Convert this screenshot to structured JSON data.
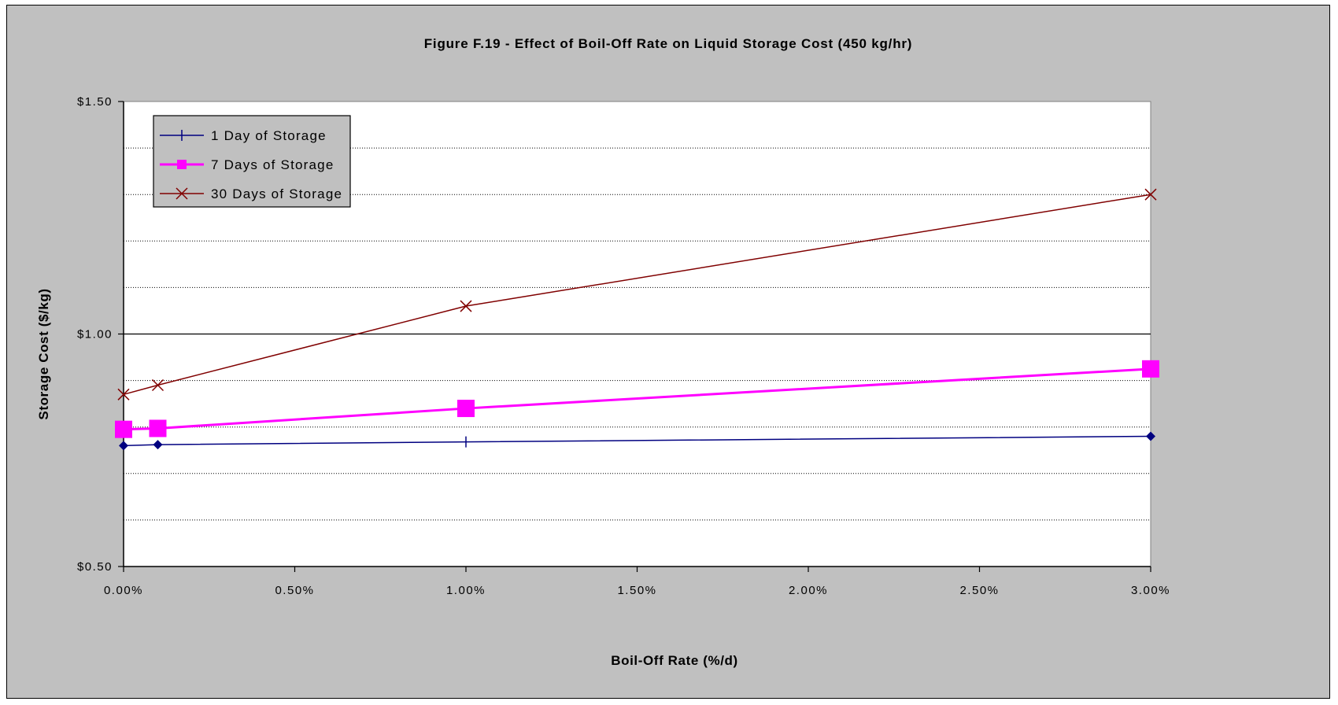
{
  "chart_data": {
    "type": "line",
    "title": "Figure F.19 - Effect of Boil-Off Rate on Liquid Storage Cost (450 kg/hr)",
    "xlabel": "Boil-Off Rate (%/d)",
    "ylabel": "Storage Cost ($/kg)",
    "xlim": [
      0.0,
      3.0
    ],
    "ylim": [
      0.5,
      1.5
    ],
    "x_ticks": [
      0.0,
      0.5,
      1.0,
      1.5,
      2.0,
      2.5,
      3.0
    ],
    "x_tick_labels": [
      "0.00%",
      "0.50%",
      "1.00%",
      "1.50%",
      "2.00%",
      "2.50%",
      "3.00%"
    ],
    "y_ticks": [
      0.5,
      1.0,
      1.5
    ],
    "y_tick_labels": [
      "$0.50",
      "$1.00",
      "$1.50"
    ],
    "y_minor_gridlines": [
      0.6,
      0.7,
      0.8,
      0.9,
      1.1,
      1.2,
      1.3,
      1.4
    ],
    "grid": true,
    "legend_position": "top-left",
    "series": [
      {
        "name": "1 Day of Storage",
        "color": "#000080",
        "marker": "plus",
        "points": [
          {
            "x": 0.0,
            "y": 0.76,
            "marker": "diamond"
          },
          {
            "x": 0.1,
            "y": 0.762,
            "marker": "diamond"
          },
          {
            "x": 1.0,
            "y": 0.768
          },
          {
            "x": 3.0,
            "y": 0.78,
            "marker": "diamond"
          }
        ]
      },
      {
        "name": "7 Days of Storage",
        "color": "#ff00ff",
        "marker": "square",
        "points": [
          {
            "x": 0.0,
            "y": 0.795
          },
          {
            "x": 0.1,
            "y": 0.797
          },
          {
            "x": 1.0,
            "y": 0.84
          },
          {
            "x": 3.0,
            "y": 0.925
          }
        ]
      },
      {
        "name": "30 Days of Storage",
        "color": "#800000",
        "marker": "x",
        "points": [
          {
            "x": 0.0,
            "y": 0.87
          },
          {
            "x": 0.1,
            "y": 0.89
          },
          {
            "x": 1.0,
            "y": 1.06
          },
          {
            "x": 3.0,
            "y": 1.3
          }
        ]
      }
    ]
  }
}
